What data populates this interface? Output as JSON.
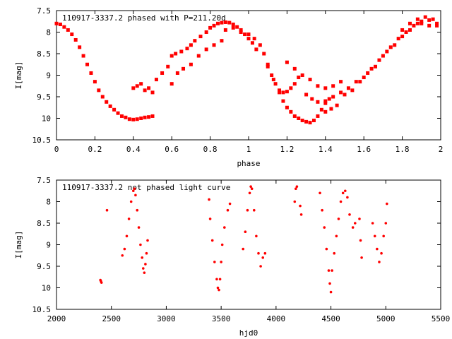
{
  "chart_data": [
    {
      "type": "scatter",
      "title": "110917-3337.2 phased with P=211.20d",
      "xlabel": "phase",
      "ylabel": "I[mag]",
      "xlim": [
        0,
        2
      ],
      "ylim": [
        7.5,
        10.5
      ],
      "y_inverted": true,
      "x_ticks": [
        "0",
        "0.2",
        "0.4",
        "0.6",
        "0.8",
        "1",
        "1.2",
        "1.4",
        "1.6",
        "1.8",
        "2"
      ],
      "y_ticks": [
        "7.5",
        "8",
        "8.5",
        "9",
        "9.5",
        "10",
        "10.5"
      ],
      "grid": false,
      "legend": "none",
      "marker_color": "#ff0000",
      "series": [
        {
          "values_xy": [
            [
              0.0,
              7.8
            ],
            [
              0.02,
              7.82
            ],
            [
              0.04,
              7.88
            ],
            [
              0.06,
              7.95
            ],
            [
              0.08,
              8.05
            ],
            [
              0.1,
              8.18
            ],
            [
              0.12,
              8.35
            ],
            [
              0.14,
              8.55
            ],
            [
              0.16,
              8.75
            ],
            [
              0.18,
              8.95
            ],
            [
              0.2,
              9.15
            ],
            [
              0.22,
              9.35
            ],
            [
              0.24,
              9.5
            ],
            [
              0.26,
              9.62
            ],
            [
              0.28,
              9.72
            ],
            [
              0.3,
              9.8
            ],
            [
              0.32,
              9.88
            ],
            [
              0.34,
              9.95
            ],
            [
              0.36,
              9.98
            ],
            [
              0.38,
              10.02
            ],
            [
              0.4,
              10.03
            ],
            [
              0.42,
              10.02
            ],
            [
              0.44,
              10.0
            ],
            [
              0.46,
              9.98
            ],
            [
              0.48,
              9.97
            ],
            [
              0.5,
              9.95
            ],
            [
              0.4,
              9.3
            ],
            [
              0.42,
              9.25
            ],
            [
              0.44,
              9.2
            ],
            [
              0.46,
              9.35
            ],
            [
              0.48,
              9.3
            ],
            [
              0.5,
              9.4
            ],
            [
              0.52,
              9.1
            ],
            [
              0.55,
              8.95
            ],
            [
              0.58,
              8.8
            ],
            [
              0.6,
              8.55
            ],
            [
              0.62,
              8.5
            ],
            [
              0.65,
              8.45
            ],
            [
              0.68,
              8.38
            ],
            [
              0.7,
              8.3
            ],
            [
              0.72,
              8.2
            ],
            [
              0.75,
              8.1
            ],
            [
              0.78,
              8.0
            ],
            [
              0.8,
              7.9
            ],
            [
              0.82,
              7.85
            ],
            [
              0.84,
              7.8
            ],
            [
              0.86,
              7.78
            ],
            [
              0.88,
              7.77
            ],
            [
              0.9,
              7.78
            ],
            [
              0.92,
              7.82
            ],
            [
              0.94,
              7.88
            ],
            [
              0.96,
              7.95
            ],
            [
              0.98,
              8.05
            ],
            [
              1.0,
              8.15
            ],
            [
              1.02,
              8.25
            ],
            [
              1.04,
              8.4
            ],
            [
              0.6,
              9.2
            ],
            [
              0.63,
              8.95
            ],
            [
              0.66,
              8.85
            ],
            [
              0.7,
              8.75
            ],
            [
              0.74,
              8.55
            ],
            [
              0.78,
              8.4
            ],
            [
              0.82,
              8.3
            ],
            [
              0.86,
              8.2
            ],
            [
              0.88,
              7.95
            ],
            [
              0.92,
              7.9
            ],
            [
              0.96,
              8.0
            ],
            [
              1.0,
              8.05
            ],
            [
              1.03,
              8.15
            ],
            [
              1.06,
              8.3
            ],
            [
              1.08,
              8.5
            ],
            [
              1.1,
              8.75
            ],
            [
              1.12,
              9.0
            ],
            [
              1.14,
              9.2
            ],
            [
              1.16,
              9.35
            ],
            [
              1.18,
              9.4
            ],
            [
              1.2,
              9.38
            ],
            [
              1.22,
              9.3
            ],
            [
              1.24,
              9.2
            ],
            [
              1.26,
              9.05
            ],
            [
              1.1,
              8.8
            ],
            [
              1.13,
              9.1
            ],
            [
              1.16,
              9.4
            ],
            [
              1.18,
              9.6
            ],
            [
              1.2,
              9.75
            ],
            [
              1.22,
              9.85
            ],
            [
              1.24,
              9.95
            ],
            [
              1.26,
              10.0
            ],
            [
              1.28,
              10.05
            ],
            [
              1.3,
              10.08
            ],
            [
              1.32,
              10.1
            ],
            [
              1.34,
              10.05
            ],
            [
              1.36,
              9.95
            ],
            [
              1.38,
              9.8
            ],
            [
              1.4,
              9.65
            ],
            [
              1.42,
              9.55
            ],
            [
              1.2,
              8.7
            ],
            [
              1.24,
              8.85
            ],
            [
              1.28,
              9.0
            ],
            [
              1.32,
              9.1
            ],
            [
              1.36,
              9.25
            ],
            [
              1.4,
              9.3
            ],
            [
              1.44,
              9.25
            ],
            [
              1.48,
              9.15
            ],
            [
              1.3,
              9.45
            ],
            [
              1.33,
              9.55
            ],
            [
              1.36,
              9.62
            ],
            [
              1.4,
              9.6
            ],
            [
              1.44,
              9.5
            ],
            [
              1.48,
              9.4
            ],
            [
              1.52,
              9.3
            ],
            [
              1.56,
              9.15
            ],
            [
              1.4,
              9.85
            ],
            [
              1.43,
              9.78
            ],
            [
              1.46,
              9.7
            ],
            [
              1.5,
              9.45
            ],
            [
              1.54,
              9.35
            ],
            [
              1.58,
              9.15
            ],
            [
              1.62,
              8.95
            ],
            [
              1.66,
              8.8
            ],
            [
              1.6,
              9.05
            ],
            [
              1.64,
              8.85
            ],
            [
              1.68,
              8.65
            ],
            [
              1.72,
              8.45
            ],
            [
              1.76,
              8.3
            ],
            [
              1.8,
              8.1
            ],
            [
              1.84,
              7.95
            ],
            [
              1.88,
              7.8
            ],
            [
              1.7,
              8.55
            ],
            [
              1.74,
              8.35
            ],
            [
              1.78,
              8.15
            ],
            [
              1.82,
              8.0
            ],
            [
              1.86,
              7.85
            ],
            [
              1.9,
              7.75
            ],
            [
              1.94,
              7.72
            ],
            [
              1.98,
              7.8
            ],
            [
              1.8,
              7.95
            ],
            [
              1.84,
              7.8
            ],
            [
              1.88,
              7.7
            ],
            [
              1.92,
              7.65
            ],
            [
              1.96,
              7.7
            ],
            [
              1.98,
              7.85
            ],
            [
              1.9,
              7.8
            ],
            [
              1.94,
              7.85
            ]
          ]
        }
      ]
    },
    {
      "type": "scatter",
      "title": "110917-3337.2 not phased light curve",
      "xlabel": "hjd0",
      "ylabel": "I[mag]",
      "xlim": [
        2000,
        5500
      ],
      "ylim": [
        7.5,
        10.5
      ],
      "y_inverted": true,
      "x_ticks": [
        "2000",
        "2500",
        "3000",
        "3500",
        "4000",
        "4500",
        "5000",
        "5500"
      ],
      "y_ticks": [
        "7.5",
        "8",
        "8.5",
        "9",
        "9.5",
        "10",
        "10.5"
      ],
      "grid": false,
      "legend": "none",
      "marker_color": "#ff0000",
      "series": [
        {
          "values_xy": [
            [
              2400,
              9.82
            ],
            [
              2405,
              9.85
            ],
            [
              2410,
              9.88
            ],
            [
              2460,
              8.2
            ],
            [
              2600,
              9.25
            ],
            [
              2620,
              9.1
            ],
            [
              2640,
              8.8
            ],
            [
              2660,
              8.4
            ],
            [
              2680,
              8.0
            ],
            [
              2700,
              7.75
            ],
            [
              2710,
              7.7
            ],
            [
              2720,
              7.85
            ],
            [
              2735,
              8.2
            ],
            [
              2750,
              8.6
            ],
            [
              2765,
              9.0
            ],
            [
              2780,
              9.3
            ],
            [
              2790,
              9.55
            ],
            [
              2800,
              9.65
            ],
            [
              2810,
              9.45
            ],
            [
              2820,
              9.2
            ],
            [
              2830,
              8.9
            ],
            [
              3390,
              7.95
            ],
            [
              3400,
              8.4
            ],
            [
              3420,
              8.9
            ],
            [
              3440,
              9.4
            ],
            [
              3460,
              9.8
            ],
            [
              3470,
              10.0
            ],
            [
              3480,
              10.05
            ],
            [
              3490,
              9.8
            ],
            [
              3500,
              9.4
            ],
            [
              3510,
              9.0
            ],
            [
              3530,
              8.6
            ],
            [
              3560,
              8.2
            ],
            [
              3580,
              8.05
            ],
            [
              3700,
              9.1
            ],
            [
              3720,
              8.7
            ],
            [
              3740,
              8.2
            ],
            [
              3760,
              7.8
            ],
            [
              3770,
              7.65
            ],
            [
              3780,
              7.7
            ],
            [
              3800,
              8.2
            ],
            [
              3820,
              8.8
            ],
            [
              3840,
              9.2
            ],
            [
              3860,
              9.5
            ],
            [
              3880,
              9.3
            ],
            [
              3900,
              9.2
            ],
            [
              4170,
              8.0
            ],
            [
              4180,
              7.7
            ],
            [
              4190,
              7.65
            ],
            [
              4220,
              8.1
            ],
            [
              4230,
              8.3
            ],
            [
              4400,
              7.8
            ],
            [
              4420,
              8.2
            ],
            [
              4440,
              8.6
            ],
            [
              4460,
              9.1
            ],
            [
              4480,
              9.6
            ],
            [
              4490,
              9.9
            ],
            [
              4500,
              10.1
            ],
            [
              4510,
              9.6
            ],
            [
              4530,
              9.2
            ],
            [
              4550,
              8.8
            ],
            [
              4570,
              8.4
            ],
            [
              4590,
              8.0
            ],
            [
              4610,
              7.8
            ],
            [
              4630,
              7.75
            ],
            [
              4650,
              7.9
            ],
            [
              4670,
              8.3
            ],
            [
              4700,
              8.6
            ],
            [
              4720,
              8.5
            ],
            [
              4760,
              8.4
            ],
            [
              4770,
              8.9
            ],
            [
              4780,
              9.3
            ],
            [
              4880,
              8.5
            ],
            [
              4900,
              8.8
            ],
            [
              4920,
              9.1
            ],
            [
              4940,
              9.4
            ],
            [
              4960,
              9.2
            ],
            [
              4980,
              8.8
            ],
            [
              5000,
              8.5
            ],
            [
              5010,
              8.05
            ]
          ]
        }
      ]
    }
  ]
}
